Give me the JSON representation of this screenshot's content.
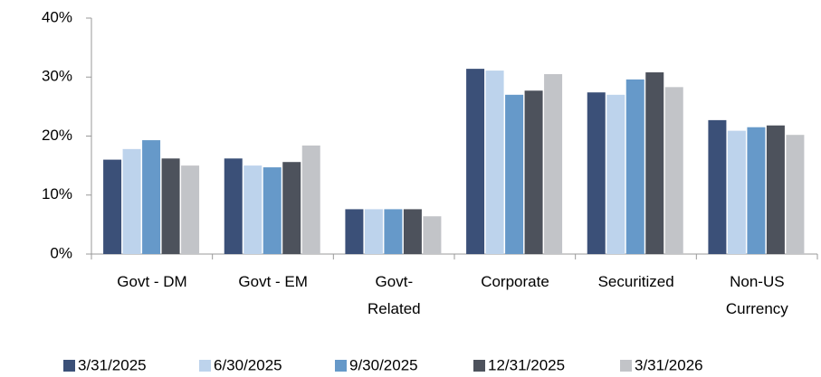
{
  "chart_data": {
    "type": "bar",
    "categories": [
      "Govt - DM",
      "Govt - EM",
      "Govt-\nRelated",
      "Corporate",
      "Securitized",
      "Non-US\nCurrency"
    ],
    "series": [
      {
        "name": "3/31/2025",
        "color": "#3b5078",
        "values": [
          16.0,
          16.2,
          7.6,
          31.4,
          27.4,
          22.7
        ]
      },
      {
        "name": "6/30/2025",
        "color": "#bdd3ec",
        "values": [
          17.8,
          15.0,
          7.6,
          31.1,
          27.0,
          20.9
        ]
      },
      {
        "name": "9/30/2025",
        "color": "#6699c9",
        "values": [
          19.3,
          14.7,
          7.6,
          27.0,
          29.6,
          21.5
        ]
      },
      {
        "name": "12/31/2025",
        "color": "#4d525c",
        "values": [
          16.2,
          15.6,
          7.6,
          27.7,
          30.8,
          21.8
        ]
      },
      {
        "name": "3/31/2026",
        "color": "#c2c4c8",
        "values": [
          15.0,
          18.4,
          6.4,
          30.5,
          28.3,
          20.2
        ]
      }
    ],
    "ylim": [
      0,
      40
    ],
    "yticks": [
      {
        "value": 0,
        "label": "0%"
      },
      {
        "value": 10,
        "label": "10%"
      },
      {
        "value": 20,
        "label": "20%"
      },
      {
        "value": 30,
        "label": "30%"
      },
      {
        "value": 40,
        "label": "40%"
      }
    ],
    "grid": false,
    "legend": "bottom"
  }
}
